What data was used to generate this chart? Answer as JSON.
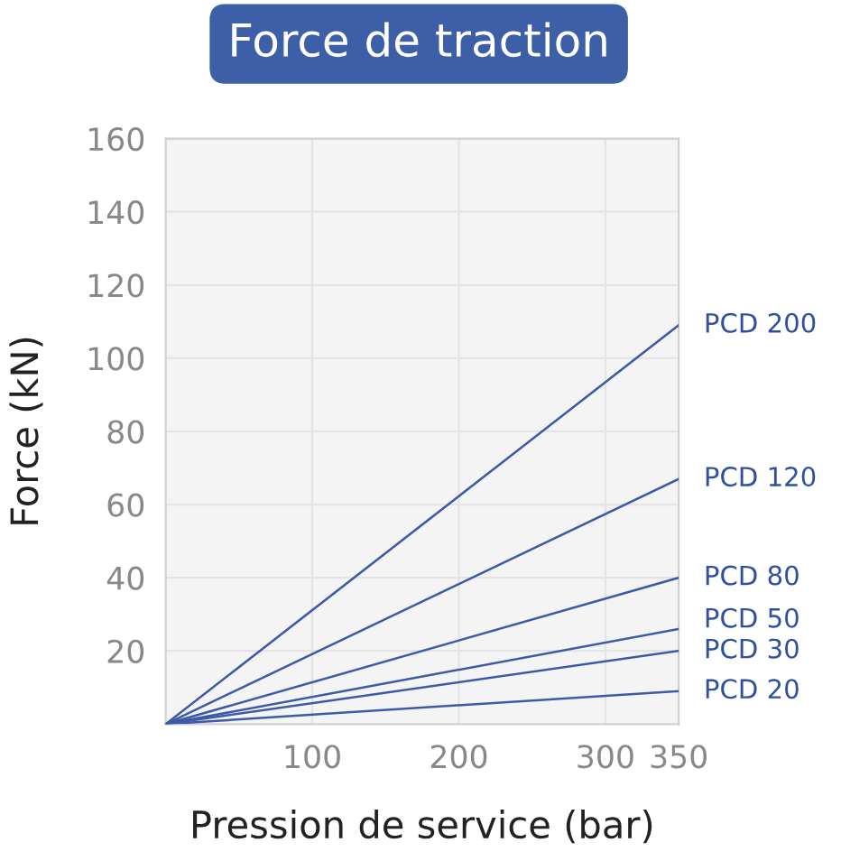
{
  "chart_data": {
    "type": "line",
    "title": "Force de traction",
    "xlabel": "Pression de service (bar)",
    "ylabel": "Force (kN)",
    "x": [
      0,
      350
    ],
    "series": [
      {
        "name": "PCD 200",
        "color": "#3d5aa8",
        "values": [
          0,
          109
        ]
      },
      {
        "name": "PCD 120",
        "color": "#3d5aa8",
        "values": [
          0,
          67
        ]
      },
      {
        "name": "PCD 80",
        "color": "#3d5aa8",
        "values": [
          0,
          40
        ]
      },
      {
        "name": "PCD 50",
        "color": "#3d5aa8",
        "values": [
          0,
          26
        ]
      },
      {
        "name": "PCD 30",
        "color": "#3d5aa8",
        "values": [
          0,
          20
        ]
      },
      {
        "name": "PCD 20",
        "color": "#3d5aa8",
        "values": [
          0,
          9
        ]
      }
    ],
    "xlim": [
      0,
      350
    ],
    "ylim": [
      0,
      160
    ],
    "xticks": [
      100,
      200,
      300,
      350
    ],
    "yticks": [
      20,
      40,
      60,
      80,
      100,
      120,
      140,
      160
    ],
    "grid": true,
    "marker": "none",
    "line_style": "solid"
  }
}
